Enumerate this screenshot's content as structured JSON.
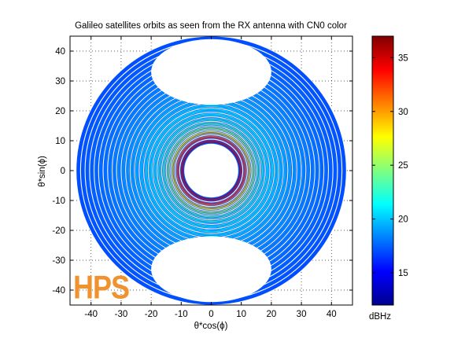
{
  "chart_data": {
    "type": "scatter",
    "title": "Galileo satellites orbits as seen from the RX antenna with CN0 color",
    "xlabel": "θ*cos(ϕ)",
    "ylabel": "θ*sin(ϕ)",
    "xlim": [
      -47,
      47
    ],
    "ylim": [
      -45,
      45
    ],
    "xticks": [
      -40,
      -30,
      -20,
      -10,
      0,
      10,
      20,
      30,
      40
    ],
    "yticks": [
      -40,
      -30,
      -20,
      -10,
      0,
      10,
      20,
      30,
      40
    ],
    "grid": true,
    "grid_style": "dotted",
    "colorbar": {
      "label": "dBHz",
      "min": 12,
      "max": 37,
      "ticks": [
        15,
        20,
        25,
        30,
        35
      ],
      "colormap": "jet"
    },
    "regions": {
      "outer_radius": 45,
      "inner_void_radius": 9,
      "top_gap": {
        "center": [
          0,
          33
        ],
        "rx": 20,
        "ry": 11
      },
      "bottom_gap": {
        "center": [
          0,
          -33
        ],
        "rx": 20,
        "ry": 11
      },
      "cn0_by_radius": [
        {
          "r": 9,
          "cn0": 37
        },
        {
          "r": 11,
          "cn0": 33
        },
        {
          "r": 13,
          "cn0": 28
        },
        {
          "r": 15,
          "cn0": 24
        },
        {
          "r": 18,
          "cn0": 22
        },
        {
          "r": 22,
          "cn0": 21
        },
        {
          "r": 26,
          "cn0": 20
        },
        {
          "r": 32,
          "cn0": 19
        },
        {
          "r": 38,
          "cn0": 18
        },
        {
          "r": 45,
          "cn0": 17
        }
      ]
    }
  },
  "watermark": {
    "text": "HPS",
    "color": "#f0922e"
  }
}
